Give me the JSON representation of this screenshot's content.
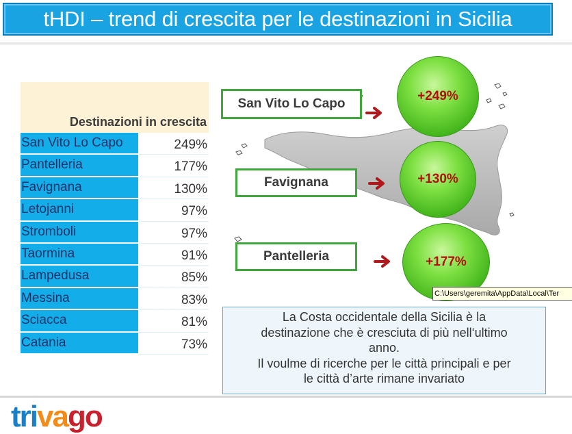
{
  "title": "tHDI – trend di crescita per le destinazioni in Sicilia",
  "table": {
    "header": "Destinazioni in crescita",
    "rows": [
      {
        "name": "San Vito Lo Capo",
        "pct": "249%"
      },
      {
        "name": "Pantelleria",
        "pct": "177%"
      },
      {
        "name": "Favignana",
        "pct": "130%"
      },
      {
        "name": "Letojanni",
        "pct": "97%"
      },
      {
        "name": "Stromboli",
        "pct": "97%"
      },
      {
        "name": "Taormina",
        "pct": "91%"
      },
      {
        "name": "Lampedusa",
        "pct": "85%"
      },
      {
        "name": "Messina",
        "pct": "83%"
      },
      {
        "name": "Sciacca",
        "pct": "81%"
      },
      {
        "name": "Catania",
        "pct": "73%"
      }
    ]
  },
  "callouts": [
    {
      "label": "San Vito Lo Capo",
      "value": "+249%"
    },
    {
      "label": "Favignana",
      "value": "+130%"
    },
    {
      "label": "Pantelleria",
      "value": "+177%"
    }
  ],
  "tooltip": "C:\\Users\\geremita\\AppData\\Local\\Ter",
  "note": {
    "line1": "La Costa occidentale della Sicilia è la",
    "line2": "destinazione che è cresciuta di più nell‘ultimo",
    "line3": "anno.",
    "line4": "Il voulme di ricerche per le città principali e per",
    "line5": "le città d’arte rimane invariato"
  },
  "logo": {
    "part1": "tri",
    "part2": "va",
    "part3": "go"
  },
  "colors": {
    "title_bg": "#1aa3e3",
    "row_bg": "#13aee9",
    "bubble_green": "#43b51c",
    "bubble_text": "#b50e0e",
    "arrow": "#b0191b",
    "label_border": "#3fa63c"
  }
}
